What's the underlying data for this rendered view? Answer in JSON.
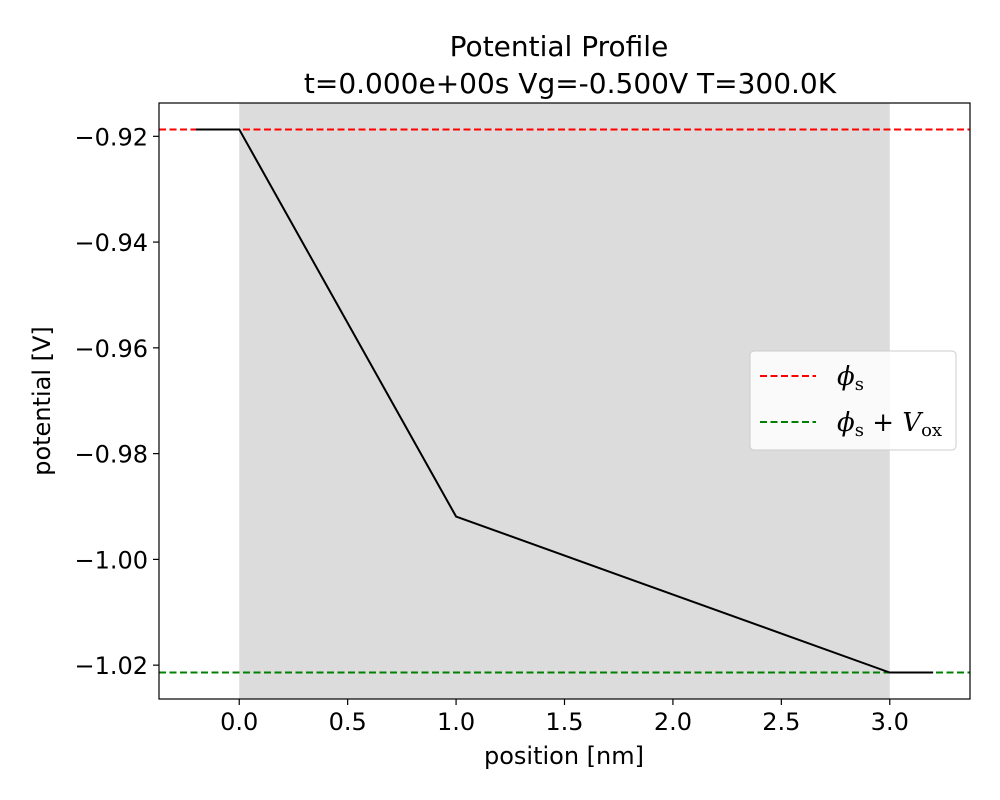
{
  "chart_data": {
    "type": "line",
    "title": "Potential Profile",
    "subtitle": "t=0.000e+00s Vg=-0.500V T=300.0K",
    "xlabel": "position [nm]",
    "ylabel": "potential [V]",
    "xlim": [
      -0.37,
      3.37
    ],
    "ylim": [
      -1.0264,
      -0.9137
    ],
    "xticks": [
      0.0,
      0.5,
      1.0,
      1.5,
      2.0,
      2.5,
      3.0
    ],
    "xtick_labels": [
      "0.0",
      "0.5",
      "1.0",
      "1.5",
      "2.0",
      "2.5",
      "3.0"
    ],
    "yticks": [
      -0.92,
      -0.94,
      -0.96,
      -0.98,
      -1.0,
      -1.02
    ],
    "ytick_labels": [
      "−0.92",
      "−0.94",
      "−0.96",
      "−0.98",
      "−1.00",
      "−1.02"
    ],
    "shaded_region": {
      "x": [
        0.0,
        3.0
      ],
      "color": "#dcdcdc"
    },
    "series": [
      {
        "color": "#000000",
        "x": [
          -0.2,
          0.0,
          1.0,
          3.0,
          3.2
        ],
        "y": [
          -0.9187,
          -0.9187,
          -0.9919,
          -1.0214,
          -1.0214
        ]
      }
    ],
    "hlines": [
      {
        "label": "ϕs",
        "y": -0.9187,
        "color": "#ff0000",
        "style": "dashed"
      },
      {
        "label": "ϕs + Vox",
        "y": -1.0214,
        "color": "#008000",
        "style": "dashed"
      }
    ],
    "legend": {
      "placement": "center-right",
      "entries": [
        {
          "phi": "ϕ",
          "sub": "s",
          "rest": "",
          "rest_v": "",
          "rest_sub": "",
          "color": "#ff0000"
        },
        {
          "phi": "ϕ",
          "sub": "s",
          "rest": " + ",
          "rest_v": "V",
          "rest_sub": "ox",
          "color": "#008000"
        }
      ]
    },
    "grid": false
  }
}
